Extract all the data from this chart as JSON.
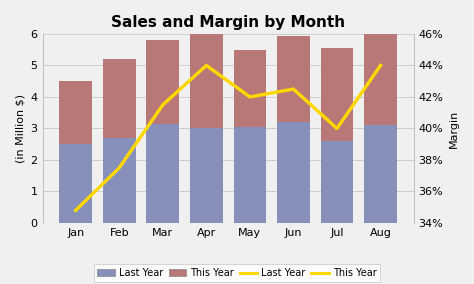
{
  "title": "Sales and Margin by Month",
  "months": [
    "Jan",
    "Feb",
    "Mar",
    "Apr",
    "May",
    "Jun",
    "Jul",
    "Aug"
  ],
  "bar_last_year": [
    2.5,
    2.7,
    3.15,
    3.0,
    3.05,
    3.2,
    2.6,
    3.1
  ],
  "bar_this_year_top": [
    2.0,
    2.5,
    2.65,
    3.2,
    2.45,
    2.75,
    2.95,
    2.95
  ],
  "line_this_year_margin": [
    34.8,
    37.5,
    41.5,
    44.0,
    42.0,
    42.5,
    40.0,
    44.0
  ],
  "line_last_year_margin": [
    34.8,
    37.5,
    41.5,
    44.0,
    42.0,
    42.5,
    40.0,
    44.0
  ],
  "bar_color_last_year": "#8690bb",
  "bar_color_this_year": "#b87878",
  "line_color": "#ffd700",
  "ylabel_left": "(in Million $)",
  "ylabel_right": "Margin",
  "ylim_left": [
    0,
    6
  ],
  "ylim_right": [
    34,
    46
  ],
  "yticks_left": [
    0,
    1,
    2,
    3,
    4,
    5,
    6
  ],
  "yticks_right": [
    34,
    36,
    38,
    40,
    42,
    44,
    46
  ],
  "background_color": "#f0f0f0",
  "title_fontsize": 11,
  "axis_fontsize": 8,
  "tick_fontsize": 8
}
